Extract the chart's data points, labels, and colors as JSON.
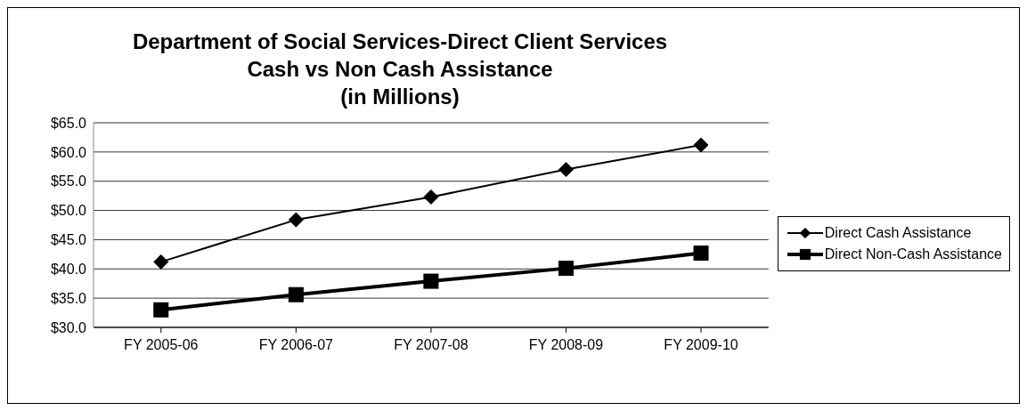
{
  "chart_data": {
    "type": "line",
    "title": "Department of Social Services-Direct Client Services\nCash vs Non Cash Assistance\n(in Millions)",
    "categories": [
      "FY 2005-06",
      "FY 2006-07",
      "FY 2007-08",
      "FY 2008-09",
      "FY 2009-10"
    ],
    "series": [
      {
        "name": "Direct Cash Assistance",
        "color": "#000000",
        "marker": "diamond",
        "values": [
          41.2,
          48.4,
          52.3,
          57.0,
          61.2
        ]
      },
      {
        "name": "Direct Non-Cash Assistance",
        "color": "#000000",
        "marker": "square",
        "values": [
          33.0,
          35.6,
          37.9,
          40.1,
          42.7
        ]
      }
    ],
    "ylim": [
      30,
      65
    ],
    "yticks": [
      {
        "value": 30,
        "label": "$30.0"
      },
      {
        "value": 35,
        "label": "$35.0"
      },
      {
        "value": 40,
        "label": "$40.0"
      },
      {
        "value": 45,
        "label": "$45.0"
      },
      {
        "value": 50,
        "label": "$50.0"
      },
      {
        "value": 55,
        "label": "$55.0"
      },
      {
        "value": 60,
        "label": "$60.0"
      },
      {
        "value": 65,
        "label": "$65.0"
      }
    ],
    "grid": "y",
    "legend": "right"
  }
}
